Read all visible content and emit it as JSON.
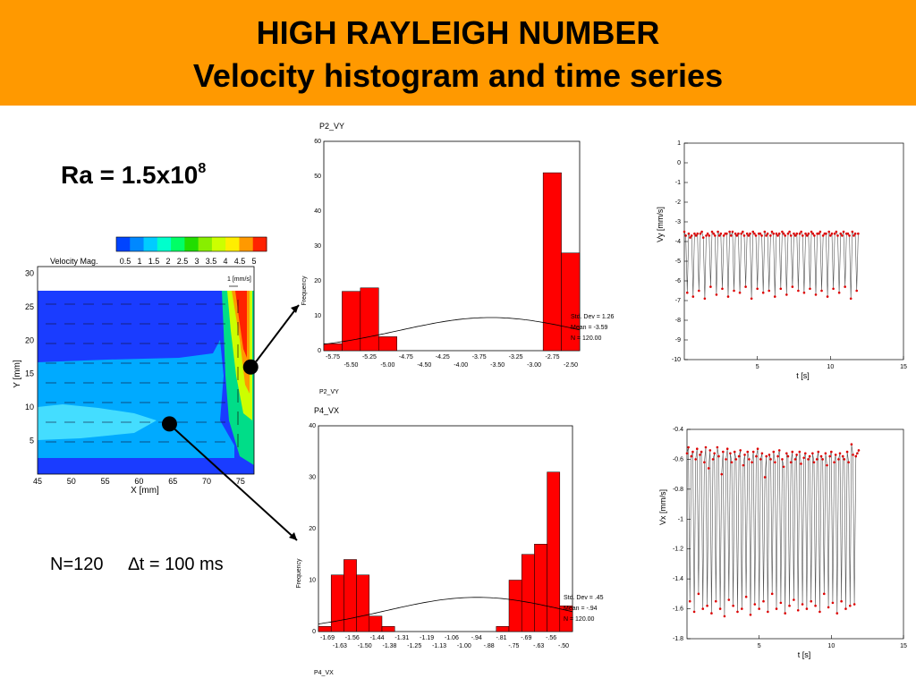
{
  "header": {
    "title": "HIGH RAYLEIGH NUMBER",
    "subtitle": "Velocity histogram and time series"
  },
  "ra": {
    "base": "Ra = 1.5x10",
    "exp": "8"
  },
  "note": {
    "n": "N=120",
    "dt": "∆t = 100 ms"
  },
  "colors": {
    "header": "#FF9900",
    "bar": "#FF0000",
    "marker": "#DD0000"
  },
  "chart_data": [
    {
      "type": "heatmap",
      "title": "Velocity Mag.",
      "colorbar": {
        "ticks": [
          "0.5",
          "1",
          "1.5",
          "2",
          "2.5",
          "3",
          "3.5",
          "4",
          "4.5",
          "5"
        ],
        "colors": [
          "#0044ff",
          "#0088ff",
          "#00ccff",
          "#00ffcc",
          "#00ff66",
          "#22dd00",
          "#88ee00",
          "#ccff00",
          "#ffee00",
          "#ff9900",
          "#ff2200"
        ]
      },
      "xlabel": "X [mm]",
      "ylabel": "Y [mm]",
      "xticks": [
        "45",
        "50",
        "55",
        "60",
        "65",
        "70",
        "75"
      ],
      "yticks": [
        "30",
        "25",
        "20",
        "15",
        "10",
        "5"
      ],
      "xlim": [
        45,
        77
      ],
      "ylim": [
        0,
        31
      ],
      "reference_vector": "1 [mm/s]",
      "points": [
        {
          "x": 64.5,
          "y": 7.5
        },
        {
          "x": 76.5,
          "y": 16.0
        }
      ]
    },
    {
      "type": "bar",
      "title": "P2_VY",
      "footer": "P2_VY",
      "ylabel": "Frequency",
      "ylim": [
        0,
        60
      ],
      "yticks": [
        "60",
        "50",
        "40",
        "30",
        "20",
        "10",
        "0"
      ],
      "xticks_upper": [
        "-5.75",
        "-5.25",
        "-4.75",
        "-4.25",
        "-3.75",
        "-3.25",
        "-2.75"
      ],
      "xticks_lower": [
        "-5.50",
        "-5.00",
        "-4.50",
        "-4.00",
        "-3.50",
        "-3.00",
        "-2.50"
      ],
      "xrange": [
        -5.875,
        -2.375
      ],
      "bins": [
        {
          "x0": -5.875,
          "x1": -5.625,
          "v": 2
        },
        {
          "x0": -5.625,
          "x1": -5.375,
          "v": 17
        },
        {
          "x0": -5.375,
          "x1": -5.125,
          "v": 18
        },
        {
          "x0": -5.125,
          "x1": -4.875,
          "v": 4
        },
        {
          "x0": -2.875,
          "x1": -2.625,
          "v": 51
        },
        {
          "x0": -2.625,
          "x1": -2.375,
          "v": 28
        }
      ],
      "stats": {
        "std": "Std. Dev = 1.26",
        "mean": "Mean = -3.59",
        "n": "N = 120.00"
      },
      "normal": {
        "mean": -3.59,
        "std": 1.26,
        "n": 120,
        "binwidth": 0.25
      }
    },
    {
      "type": "bar",
      "title": "P4_VX",
      "footer": "P4_VX",
      "ylabel": "Frequency",
      "ylim": [
        0,
        40
      ],
      "yticks": [
        "40",
        "30",
        "20",
        "10",
        "0"
      ],
      "xticks_upper": [
        "-1.69",
        "-1.56",
        "-1.44",
        "-1.31",
        "-1.19",
        "-1.06",
        "-.94",
        "-.81",
        "-.69",
        "-.56"
      ],
      "xticks_lower": [
        "-1.63",
        "-1.50",
        "-1.38",
        "-1.25",
        "-1.13",
        "-1.00",
        "-.88",
        "-.75",
        "-.63",
        "-.50"
      ],
      "xrange": [
        -1.72,
        -0.47
      ],
      "bins": [
        {
          "x0": -1.72,
          "x1": -1.6575,
          "v": 1
        },
        {
          "x0": -1.6575,
          "x1": -1.595,
          "v": 11
        },
        {
          "x0": -1.595,
          "x1": -1.5325,
          "v": 14
        },
        {
          "x0": -1.5325,
          "x1": -1.47,
          "v": 11
        },
        {
          "x0": -1.47,
          "x1": -1.4075,
          "v": 3
        },
        {
          "x0": -1.4075,
          "x1": -1.345,
          "v": 1
        },
        {
          "x0": -0.845,
          "x1": -0.7825,
          "v": 1
        },
        {
          "x0": -0.7825,
          "x1": -0.72,
          "v": 10
        },
        {
          "x0": -0.72,
          "x1": -0.6575,
          "v": 15
        },
        {
          "x0": -0.6575,
          "x1": -0.595,
          "v": 17
        },
        {
          "x0": -0.595,
          "x1": -0.5325,
          "v": 31
        },
        {
          "x0": -0.5325,
          "x1": -0.47,
          "v": 5
        }
      ],
      "stats": {
        "std": "Std. Dev = .45",
        "mean": "Mean = -.94",
        "n": "N = 120.00"
      },
      "normal": {
        "mean": -0.94,
        "std": 0.45,
        "n": 120,
        "binwidth": 0.0625
      }
    },
    {
      "type": "line",
      "xlabel": "t [s]",
      "ylabel": "Vy [mm/s]",
      "xlim": [
        0,
        15
      ],
      "ylim": [
        -10,
        1
      ],
      "xticks": [
        5,
        10,
        15
      ],
      "yticks": [
        1,
        0,
        -1,
        -2,
        -3,
        -4,
        -5,
        -6,
        -7,
        -8,
        -9,
        -10
      ],
      "y": [
        -3.5,
        -3.7,
        -6.6,
        -3.6,
        -3.8,
        -3.7,
        -6.8,
        -3.6,
        -3.7,
        -3.6,
        -6.5,
        -3.6,
        -3.5,
        -3.8,
        -6.9,
        -3.7,
        -3.6,
        -3.7,
        -6.3,
        -3.5,
        -3.6,
        -3.7,
        -6.7,
        -3.5,
        -3.7,
        -3.6,
        -6.4,
        -3.7,
        -3.6,
        -3.6,
        -6.8,
        -3.5,
        -3.7,
        -3.5,
        -6.5,
        -3.6,
        -3.7,
        -3.6,
        -6.6,
        -3.6,
        -3.5,
        -3.7,
        -6.3,
        -3.6,
        -3.7,
        -3.6,
        -6.9,
        -3.5,
        -3.6,
        -3.7,
        -6.4,
        -3.6,
        -3.6,
        -3.7,
        -6.6,
        -3.5,
        -3.7,
        -3.6,
        -6.5,
        -3.7,
        -3.5,
        -3.6,
        -6.8,
        -3.6,
        -3.7,
        -3.6,
        -6.4,
        -3.5,
        -3.6,
        -3.7,
        -6.7,
        -3.6,
        -3.5,
        -3.7,
        -6.3,
        -3.6,
        -3.7,
        -3.6,
        -6.5,
        -3.6,
        -3.5,
        -3.7,
        -6.6,
        -3.6,
        -3.7,
        -3.6,
        -6.4,
        -3.5,
        -3.6,
        -3.7,
        -6.7,
        -3.6,
        -3.6,
        -3.5,
        -6.5,
        -3.7,
        -3.6,
        -3.6,
        -6.8,
        -3.5,
        -3.7,
        -3.6,
        -6.4,
        -3.6,
        -3.5,
        -3.7,
        -6.6,
        -3.6,
        -3.7,
        -3.5,
        -6.3,
        -3.6,
        -3.6,
        -3.7,
        -6.9,
        -3.5,
        -3.7,
        -3.6,
        -6.5,
        -3.6
      ]
    },
    {
      "type": "line",
      "xlabel": "t [s]",
      "ylabel": "Vx [mm/s]",
      "xlim": [
        0,
        15
      ],
      "ylim": [
        -1.8,
        -0.4
      ],
      "xticks": [
        5,
        10,
        15
      ],
      "yticks": [
        -0.4,
        -0.6,
        -0.8,
        -1,
        -1.2,
        -1.4,
        -1.6,
        -1.8
      ],
      "y": [
        -0.56,
        -0.52,
        -1.55,
        -0.58,
        -0.55,
        -1.62,
        -0.6,
        -0.53,
        -1.5,
        -0.57,
        -0.55,
        -1.6,
        -0.62,
        -0.52,
        -1.58,
        -0.66,
        -0.54,
        -1.63,
        -0.6,
        -0.56,
        -1.55,
        -0.52,
        -0.58,
        -1.6,
        -0.7,
        -0.55,
        -1.65,
        -0.6,
        -0.53,
        -1.54,
        -0.56,
        -0.62,
        -1.58,
        -0.55,
        -0.6,
        -1.62,
        -0.58,
        -0.54,
        -1.6,
        -0.64,
        -0.57,
        -1.52,
        -0.55,
        -0.6,
        -1.64,
        -0.62,
        -0.55,
        -1.57,
        -0.58,
        -0.53,
        -1.6,
        -0.6,
        -0.56,
        -1.55,
        -0.72,
        -0.58,
        -1.62,
        -0.57,
        -0.6,
        -1.5,
        -0.55,
        -0.62,
        -1.6,
        -0.58,
        -0.54,
        -1.56,
        -0.6,
        -0.65,
        -1.63,
        -0.56,
        -0.58,
        -1.58,
        -0.62,
        -0.55,
        -1.54,
        -0.6,
        -0.57,
        -1.61,
        -0.55,
        -0.63,
        -1.57,
        -0.59,
        -0.56,
        -1.6,
        -0.6,
        -0.58,
        -1.55,
        -0.56,
        -0.62,
        -1.58,
        -0.6,
        -0.55,
        -1.62,
        -0.58,
        -0.6,
        -1.5,
        -0.56,
        -0.64,
        -1.59,
        -0.58,
        -0.55,
        -1.56,
        -0.62,
        -0.57,
        -1.63,
        -0.6,
        -0.56,
        -1.55,
        -0.58,
        -0.6,
        -1.6,
        -0.55,
        -0.62,
        -1.58,
        -0.5,
        -0.57,
        -1.57,
        -0.58,
        -0.56,
        -0.54
      ]
    }
  ]
}
